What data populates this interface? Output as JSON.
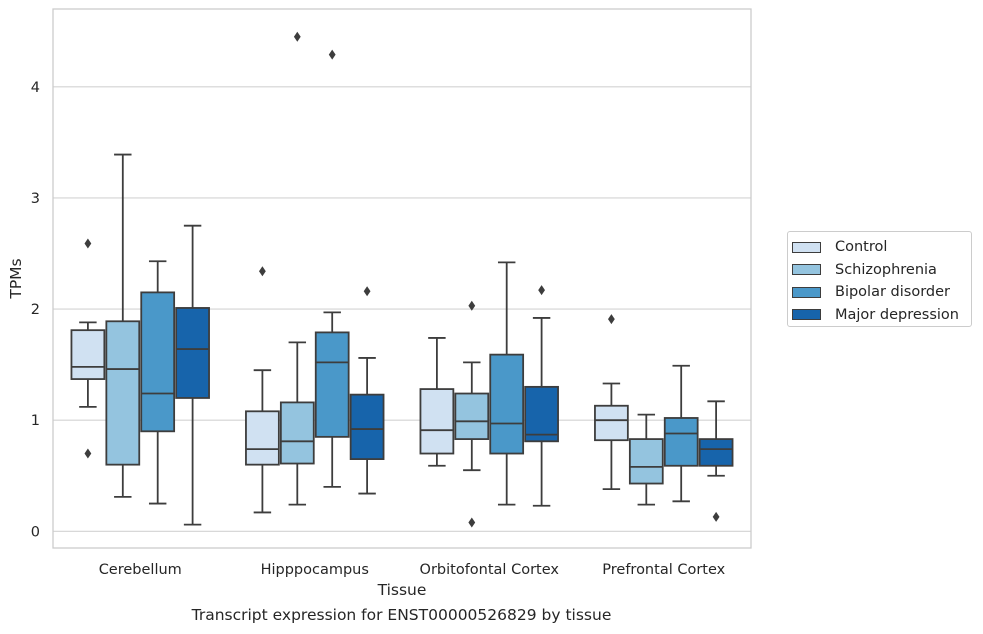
{
  "chart_data": {
    "type": "box",
    "caption": "Transcript expression for ENST00000526829 by tissue",
    "xlabel": "Tissue",
    "ylabel": "TPMs",
    "ylim": [
      -0.15,
      4.7
    ],
    "yticks": [
      0,
      1,
      2,
      3,
      4
    ],
    "grid": "horizontal",
    "legend_position": "right",
    "categories": [
      "Cerebellum",
      "Hipppocampus",
      "Orbitofontal Cortex",
      "Prefrontal Cortex"
    ],
    "series": [
      {
        "name": "Control",
        "color": "#d0e1f2",
        "boxes": [
          {
            "whisker_low": 1.12,
            "q1": 1.37,
            "median": 1.48,
            "q3": 1.81,
            "whisker_high": 1.88,
            "outliers": [
              2.59,
              0.7
            ]
          },
          {
            "whisker_low": 0.17,
            "q1": 0.6,
            "median": 0.74,
            "q3": 1.08,
            "whisker_high": 1.45,
            "outliers": [
              2.34
            ]
          },
          {
            "whisker_low": 0.59,
            "q1": 0.7,
            "median": 0.91,
            "q3": 1.28,
            "whisker_high": 1.74,
            "outliers": []
          },
          {
            "whisker_low": 0.38,
            "q1": 0.82,
            "median": 1.0,
            "q3": 1.13,
            "whisker_high": 1.33,
            "outliers": [
              1.91
            ]
          }
        ]
      },
      {
        "name": "Schizophrenia",
        "color": "#94c4df",
        "boxes": [
          {
            "whisker_low": 0.31,
            "q1": 0.6,
            "median": 1.46,
            "q3": 1.89,
            "whisker_high": 3.39,
            "outliers": []
          },
          {
            "whisker_low": 0.24,
            "q1": 0.61,
            "median": 0.81,
            "q3": 1.16,
            "whisker_high": 1.7,
            "outliers": [
              4.45
            ]
          },
          {
            "whisker_low": 0.55,
            "q1": 0.83,
            "median": 0.99,
            "q3": 1.24,
            "whisker_high": 1.52,
            "outliers": [
              2.03,
              0.08
            ]
          },
          {
            "whisker_low": 0.24,
            "q1": 0.43,
            "median": 0.58,
            "q3": 0.83,
            "whisker_high": 1.05,
            "outliers": []
          }
        ]
      },
      {
        "name": "Bipolar disorder",
        "color": "#4a98c9",
        "boxes": [
          {
            "whisker_low": 0.25,
            "q1": 0.9,
            "median": 1.24,
            "q3": 2.15,
            "whisker_high": 2.43,
            "outliers": []
          },
          {
            "whisker_low": 0.4,
            "q1": 0.85,
            "median": 1.52,
            "q3": 1.79,
            "whisker_high": 1.97,
            "outliers": [
              4.29
            ]
          },
          {
            "whisker_low": 0.24,
            "q1": 0.7,
            "median": 0.97,
            "q3": 1.59,
            "whisker_high": 2.42,
            "outliers": []
          },
          {
            "whisker_low": 0.27,
            "q1": 0.59,
            "median": 0.88,
            "q3": 1.02,
            "whisker_high": 1.49,
            "outliers": []
          }
        ]
      },
      {
        "name": "Major depression",
        "color": "#1764ab",
        "boxes": [
          {
            "whisker_low": 0.06,
            "q1": 1.2,
            "median": 1.64,
            "q3": 2.01,
            "whisker_high": 2.75,
            "outliers": []
          },
          {
            "whisker_low": 0.34,
            "q1": 0.65,
            "median": 0.92,
            "q3": 1.23,
            "whisker_high": 1.56,
            "outliers": [
              2.16
            ]
          },
          {
            "whisker_low": 0.23,
            "q1": 0.81,
            "median": 0.87,
            "q3": 1.3,
            "whisker_high": 1.92,
            "outliers": [
              2.17
            ]
          },
          {
            "whisker_low": 0.5,
            "q1": 0.59,
            "median": 0.74,
            "q3": 0.83,
            "whisker_high": 1.17,
            "outliers": [
              0.13
            ]
          }
        ]
      }
    ]
  }
}
